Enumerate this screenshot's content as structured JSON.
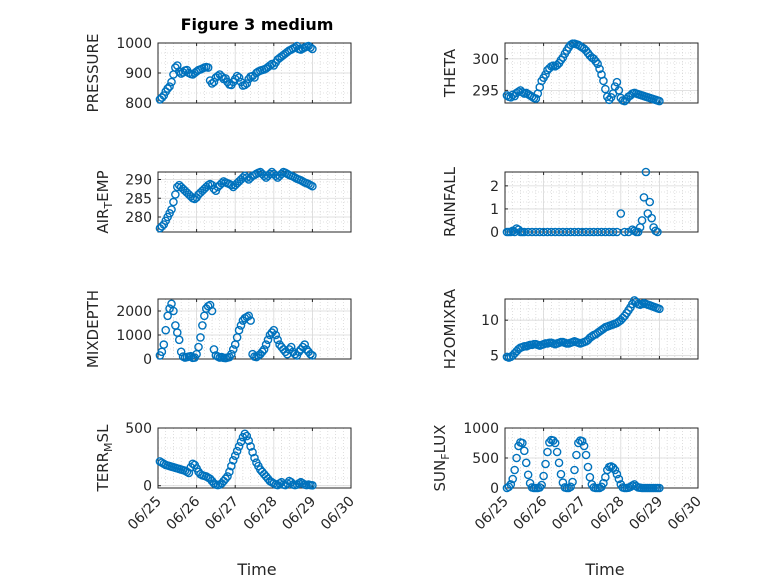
{
  "figure": {
    "title": "Figure 3 medium",
    "x_axis_label": "Time",
    "x_tick_labels": [
      "06/25",
      "06/26",
      "06/27",
      "06/28",
      "06/29",
      "06/30"
    ],
    "marker_color": "#0072BD"
  },
  "chart_data": [
    {
      "type": "scatter",
      "ylabel": "PRESSURE",
      "ylim": [
        800,
        1000
      ],
      "yticks": [
        800,
        900,
        1000
      ],
      "xlim": [
        0,
        5
      ],
      "grid": "minor",
      "x": [
        0.05,
        0.1,
        0.15,
        0.2,
        0.25,
        0.3,
        0.35,
        0.4,
        0.45,
        0.5,
        0.55,
        0.6,
        0.65,
        0.7,
        0.75,
        0.8,
        0.85,
        0.9,
        0.95,
        1.0,
        1.05,
        1.1,
        1.15,
        1.2,
        1.25,
        1.3,
        1.35,
        1.4,
        1.45,
        1.5,
        1.55,
        1.6,
        1.65,
        1.7,
        1.75,
        1.8,
        1.85,
        1.9,
        1.95,
        2.0,
        2.05,
        2.1,
        2.15,
        2.2,
        2.25,
        2.3,
        2.35,
        2.4,
        2.45,
        2.5,
        2.55,
        2.6,
        2.65,
        2.7,
        2.75,
        2.8,
        2.85,
        2.9,
        2.95,
        3.0,
        3.05,
        3.1,
        3.15,
        3.2,
        3.25,
        3.3,
        3.35,
        3.4,
        3.45,
        3.5,
        3.55,
        3.6,
        3.65,
        3.7,
        3.75,
        3.8,
        3.85,
        3.9,
        3.95,
        4.0
      ],
      "y": [
        812,
        818,
        825,
        838,
        848,
        855,
        870,
        895,
        918,
        925,
        905,
        898,
        902,
        908,
        910,
        900,
        897,
        895,
        900,
        905,
        910,
        912,
        915,
        918,
        920,
        918,
        875,
        865,
        870,
        885,
        890,
        895,
        888,
        880,
        882,
        870,
        862,
        860,
        870,
        880,
        890,
        885,
        870,
        858,
        860,
        865,
        880,
        888,
        890,
        885,
        900,
        905,
        908,
        910,
        912,
        915,
        920,
        925,
        930,
        925,
        935,
        945,
        950,
        955,
        960,
        965,
        970,
        975,
        978,
        982,
        985,
        990,
        980,
        978,
        982,
        985,
        988,
        990,
        985,
        980
      ],
      "values": []
    },
    {
      "type": "scatter",
      "ylabel": "THETA",
      "ylim": [
        293,
        302.5
      ],
      "yticks": [
        295,
        300
      ],
      "xlim": [
        0,
        5
      ],
      "grid": "minor",
      "x": [
        0.05,
        0.1,
        0.15,
        0.2,
        0.25,
        0.3,
        0.35,
        0.4,
        0.45,
        0.5,
        0.55,
        0.6,
        0.65,
        0.7,
        0.75,
        0.8,
        0.85,
        0.9,
        0.95,
        1.0,
        1.05,
        1.1,
        1.15,
        1.2,
        1.25,
        1.3,
        1.35,
        1.4,
        1.45,
        1.5,
        1.55,
        1.6,
        1.65,
        1.7,
        1.75,
        1.8,
        1.85,
        1.9,
        1.95,
        2.0,
        2.05,
        2.1,
        2.15,
        2.2,
        2.25,
        2.3,
        2.35,
        2.4,
        2.45,
        2.5,
        2.55,
        2.6,
        2.65,
        2.7,
        2.75,
        2.8,
        2.85,
        2.9,
        2.95,
        3.0,
        3.05,
        3.1,
        3.15,
        3.2,
        3.25,
        3.3,
        3.35,
        3.4,
        3.45,
        3.5,
        3.55,
        3.6,
        3.65,
        3.7,
        3.75,
        3.8,
        3.85,
        3.9,
        3.95,
        4.0
      ],
      "y": [
        294.2,
        294.0,
        293.9,
        294.3,
        294.1,
        294.6,
        294.8,
        295.0,
        294.7,
        294.5,
        294.6,
        294.4,
        294.2,
        294.0,
        293.8,
        293.7,
        294.5,
        295.5,
        296.5,
        297.0,
        297.5,
        298.2,
        298.5,
        298.8,
        298.9,
        298.8,
        299.0,
        299.3,
        299.8,
        300.2,
        300.8,
        301.3,
        301.8,
        302.2,
        302.4,
        302.4,
        302.3,
        302.2,
        302.0,
        301.8,
        301.6,
        301.3,
        300.9,
        300.5,
        300.2,
        300.0,
        299.6,
        299.2,
        298.4,
        297.5,
        296.5,
        295.2,
        294.0,
        293.5,
        293.9,
        294.5,
        295.6,
        296.3,
        295.0,
        293.8,
        293.4,
        293.3,
        293.6,
        294.0,
        294.2,
        294.5,
        294.6,
        294.5,
        294.4,
        294.3,
        294.2,
        294.1,
        294.0,
        293.9,
        293.8,
        293.7,
        293.6,
        293.5,
        293.4,
        293.3
      ],
      "values": []
    },
    {
      "type": "scatter",
      "ylabel": "AIR_TEMP",
      "ylabel_parts": {
        "base": "AIR",
        "sub": "T",
        "rest": "EMP"
      },
      "ylim": [
        276,
        292
      ],
      "yticks": [
        280,
        285,
        290
      ],
      "xlim": [
        0,
        5
      ],
      "grid": "minor",
      "x": [
        0.05,
        0.1,
        0.15,
        0.2,
        0.25,
        0.3,
        0.35,
        0.4,
        0.45,
        0.5,
        0.55,
        0.6,
        0.65,
        0.7,
        0.75,
        0.8,
        0.85,
        0.9,
        0.95,
        1.0,
        1.05,
        1.1,
        1.15,
        1.2,
        1.25,
        1.3,
        1.35,
        1.4,
        1.45,
        1.5,
        1.55,
        1.6,
        1.65,
        1.7,
        1.75,
        1.8,
        1.85,
        1.9,
        1.95,
        2.0,
        2.05,
        2.1,
        2.15,
        2.2,
        2.25,
        2.3,
        2.35,
        2.4,
        2.45,
        2.5,
        2.55,
        2.6,
        2.65,
        2.7,
        2.75,
        2.8,
        2.85,
        2.9,
        2.95,
        3.0,
        3.05,
        3.1,
        3.15,
        3.2,
        3.25,
        3.3,
        3.35,
        3.4,
        3.45,
        3.5,
        3.55,
        3.6,
        3.65,
        3.7,
        3.75,
        3.8,
        3.85,
        3.9,
        3.95,
        4.0
      ],
      "y": [
        277,
        277.5,
        278,
        279,
        280,
        281,
        282,
        284,
        286,
        288,
        288.5,
        288,
        287.5,
        287,
        286.5,
        286,
        285.5,
        285,
        284.8,
        285.2,
        286,
        286.5,
        287,
        287.5,
        288,
        288.5,
        288.8,
        288.5,
        287.5,
        287,
        288,
        288.5,
        289,
        289.5,
        289.2,
        289,
        288.8,
        288.5,
        288,
        288.5,
        289,
        289.5,
        290,
        290.5,
        291,
        290.5,
        290,
        290.5,
        291,
        291.2,
        291.5,
        291.8,
        292,
        291.5,
        291,
        290.5,
        291,
        291.5,
        292,
        291.5,
        291,
        290.5,
        291,
        291.5,
        292,
        291.8,
        291.5,
        291.2,
        291,
        290.8,
        290.5,
        290.2,
        290,
        289.8,
        289.5,
        289.2,
        289,
        288.8,
        288.5,
        288.2
      ],
      "values": []
    },
    {
      "type": "scatter",
      "ylabel": "RAINFALL",
      "ylim": [
        0,
        2.6
      ],
      "yticks": [
        0,
        1,
        2
      ],
      "xlim": [
        0,
        5
      ],
      "grid": "minor",
      "x": [
        0.05,
        0.1,
        0.15,
        0.2,
        0.25,
        0.3,
        0.35,
        0.4,
        0.45,
        0.5,
        0.6,
        0.7,
        0.8,
        0.9,
        1.0,
        1.1,
        1.2,
        1.3,
        1.4,
        1.5,
        1.6,
        1.7,
        1.8,
        1.9,
        2.0,
        2.1,
        2.2,
        2.3,
        2.4,
        2.5,
        2.6,
        2.7,
        2.8,
        2.9,
        3.0,
        3.1,
        3.2,
        3.3,
        3.35,
        3.4,
        3.45,
        3.5,
        3.55,
        3.6,
        3.65,
        3.7,
        3.75,
        3.8,
        3.85,
        3.9,
        3.95
      ],
      "y": [
        0,
        0,
        0,
        0.05,
        0,
        0.15,
        0.1,
        0,
        0,
        0,
        0,
        0,
        0,
        0,
        0,
        0,
        0,
        0,
        0,
        0,
        0,
        0,
        0,
        0,
        0,
        0,
        0,
        0,
        0,
        0,
        0,
        0,
        0,
        0,
        0.8,
        0,
        0,
        0.1,
        0.05,
        0,
        0,
        0.2,
        0.5,
        1.5,
        2.6,
        0.8,
        1.3,
        0.6,
        0.2,
        0.05,
        0
      ],
      "values": []
    },
    {
      "type": "scatter",
      "ylabel": "MIXDEPTH",
      "ylim": [
        0,
        2500
      ],
      "yticks": [
        0,
        1000,
        2000
      ],
      "xlim": [
        0,
        5
      ],
      "grid": "minor",
      "x": [
        0.05,
        0.1,
        0.15,
        0.2,
        0.25,
        0.3,
        0.35,
        0.4,
        0.45,
        0.5,
        0.55,
        0.6,
        0.65,
        0.7,
        0.75,
        0.8,
        0.85,
        0.9,
        0.95,
        1.0,
        1.05,
        1.1,
        1.15,
        1.2,
        1.25,
        1.3,
        1.35,
        1.4,
        1.45,
        1.5,
        1.55,
        1.6,
        1.65,
        1.7,
        1.75,
        1.8,
        1.85,
        1.9,
        1.95,
        2.0,
        2.05,
        2.1,
        2.15,
        2.2,
        2.25,
        2.3,
        2.35,
        2.4,
        2.45,
        2.5,
        2.55,
        2.6,
        2.65,
        2.7,
        2.75,
        2.8,
        2.85,
        2.9,
        2.95,
        3.0,
        3.05,
        3.1,
        3.15,
        3.2,
        3.25,
        3.3,
        3.35,
        3.4,
        3.45,
        3.5,
        3.55,
        3.6,
        3.65,
        3.7,
        3.75,
        3.8,
        3.85,
        3.9,
        3.95,
        4.0
      ],
      "y": [
        150,
        300,
        600,
        1200,
        1800,
        2100,
        2300,
        2000,
        1400,
        1100,
        800,
        300,
        100,
        60,
        80,
        100,
        120,
        50,
        60,
        200,
        500,
        900,
        1400,
        1800,
        2100,
        2200,
        2250,
        2000,
        400,
        150,
        100,
        60,
        80,
        50,
        40,
        60,
        80,
        200,
        400,
        600,
        900,
        1200,
        1400,
        1600,
        1700,
        1750,
        1800,
        1600,
        200,
        100,
        80,
        150,
        200,
        300,
        400,
        600,
        800,
        1000,
        1100,
        1200,
        1000,
        800,
        600,
        500,
        400,
        300,
        200,
        400,
        500,
        300,
        200,
        150,
        300,
        400,
        500,
        600,
        400,
        300,
        200,
        150
      ],
      "values": []
    },
    {
      "type": "scatter",
      "ylabel": "H2OMIXRA",
      "ylim": [
        4.5,
        13
      ],
      "yticks": [
        5,
        10
      ],
      "xlim": [
        0,
        5
      ],
      "grid": "minor",
      "x": [
        0.05,
        0.1,
        0.15,
        0.2,
        0.25,
        0.3,
        0.35,
        0.4,
        0.45,
        0.5,
        0.55,
        0.6,
        0.65,
        0.7,
        0.75,
        0.8,
        0.85,
        0.9,
        0.95,
        1.0,
        1.05,
        1.1,
        1.15,
        1.2,
        1.25,
        1.3,
        1.35,
        1.4,
        1.45,
        1.5,
        1.55,
        1.6,
        1.65,
        1.7,
        1.75,
        1.8,
        1.85,
        1.9,
        1.95,
        2.0,
        2.05,
        2.1,
        2.15,
        2.2,
        2.25,
        2.3,
        2.35,
        2.4,
        2.45,
        2.5,
        2.55,
        2.6,
        2.65,
        2.7,
        2.75,
        2.8,
        2.85,
        2.9,
        2.95,
        3.0,
        3.05,
        3.1,
        3.15,
        3.2,
        3.25,
        3.3,
        3.35,
        3.4,
        3.45,
        3.5,
        3.55,
        3.6,
        3.65,
        3.7,
        3.75,
        3.8,
        3.85,
        3.9,
        3.95,
        4.0
      ],
      "y": [
        4.8,
        4.7,
        4.8,
        5.0,
        5.3,
        5.6,
        5.9,
        6.1,
        6.2,
        6.3,
        6.3,
        6.4,
        6.5,
        6.5,
        6.6,
        6.6,
        6.5,
        6.4,
        6.5,
        6.6,
        6.7,
        6.7,
        6.8,
        6.8,
        6.7,
        6.6,
        6.7,
        6.8,
        6.9,
        6.9,
        6.8,
        6.7,
        6.7,
        6.8,
        6.9,
        7.0,
        6.9,
        6.8,
        6.7,
        6.8,
        6.9,
        7.0,
        7.2,
        7.5,
        7.7,
        7.9,
        8.0,
        8.2,
        8.4,
        8.6,
        8.8,
        9.0,
        9.1,
        9.2,
        9.3,
        9.4,
        9.5,
        9.6,
        9.8,
        10.0,
        10.3,
        10.6,
        11.0,
        11.4,
        11.8,
        12.3,
        12.8,
        12.6,
        12.3,
        12.2,
        12.3,
        12.4,
        12.3,
        12.2,
        12.1,
        12.0,
        11.9,
        11.8,
        11.7,
        11.6
      ],
      "values": []
    },
    {
      "type": "scatter",
      "ylabel": "TERR_MSL",
      "ylabel_parts": {
        "base": "TERR",
        "sub": "M",
        "rest": "SL"
      },
      "ylim": [
        -20,
        500
      ],
      "yticks": [
        0,
        500
      ],
      "xlim": [
        0,
        5
      ],
      "grid": "minor",
      "x": [
        0.05,
        0.1,
        0.15,
        0.2,
        0.25,
        0.3,
        0.35,
        0.4,
        0.45,
        0.5,
        0.55,
        0.6,
        0.65,
        0.7,
        0.75,
        0.8,
        0.85,
        0.9,
        0.95,
        1.0,
        1.05,
        1.1,
        1.15,
        1.2,
        1.25,
        1.3,
        1.35,
        1.4,
        1.45,
        1.5,
        1.55,
        1.6,
        1.65,
        1.7,
        1.75,
        1.8,
        1.85,
        1.9,
        1.95,
        2.0,
        2.05,
        2.1,
        2.15,
        2.2,
        2.25,
        2.3,
        2.35,
        2.4,
        2.45,
        2.5,
        2.55,
        2.6,
        2.65,
        2.7,
        2.75,
        2.8,
        2.85,
        2.9,
        2.95,
        3.0,
        3.05,
        3.1,
        3.15,
        3.2,
        3.25,
        3.3,
        3.35,
        3.4,
        3.45,
        3.5,
        3.55,
        3.6,
        3.65,
        3.7,
        3.75,
        3.8,
        3.85,
        3.9,
        3.95,
        4.0
      ],
      "y": [
        210,
        200,
        190,
        180,
        175,
        170,
        165,
        160,
        155,
        150,
        145,
        140,
        135,
        130,
        120,
        110,
        160,
        190,
        180,
        150,
        120,
        100,
        90,
        85,
        80,
        70,
        60,
        40,
        20,
        10,
        5,
        10,
        20,
        40,
        60,
        80,
        120,
        170,
        220,
        260,
        300,
        340,
        380,
        420,
        450,
        430,
        390,
        340,
        290,
        240,
        200,
        170,
        140,
        120,
        100,
        80,
        60,
        40,
        30,
        20,
        10,
        5,
        20,
        30,
        10,
        5,
        20,
        40,
        30,
        10,
        5,
        10,
        20,
        30,
        20,
        10,
        5,
        10,
        5,
        3
      ],
      "values": []
    },
    {
      "type": "scatter",
      "ylabel": "SUN_FLUX",
      "ylabel_parts": {
        "base": "SUN",
        "sub": "F",
        "rest": "LUX"
      },
      "ylim": [
        0,
        1000
      ],
      "yticks": [
        0,
        500,
        1000
      ],
      "xlim": [
        0,
        5
      ],
      "grid": "minor",
      "x": [
        0.05,
        0.1,
        0.15,
        0.2,
        0.25,
        0.3,
        0.35,
        0.4,
        0.45,
        0.5,
        0.55,
        0.6,
        0.65,
        0.7,
        0.75,
        0.8,
        0.85,
        0.9,
        0.95,
        1.0,
        1.05,
        1.1,
        1.15,
        1.2,
        1.25,
        1.3,
        1.35,
        1.4,
        1.45,
        1.5,
        1.55,
        1.6,
        1.65,
        1.7,
        1.75,
        1.8,
        1.85,
        1.9,
        1.95,
        2.0,
        2.05,
        2.1,
        2.15,
        2.2,
        2.25,
        2.3,
        2.35,
        2.4,
        2.45,
        2.5,
        2.55,
        2.6,
        2.65,
        2.7,
        2.75,
        2.8,
        2.85,
        2.9,
        2.95,
        3.0,
        3.05,
        3.1,
        3.15,
        3.2,
        3.25,
        3.3,
        3.35,
        3.4,
        3.45,
        3.5,
        3.55,
        3.6,
        3.65,
        3.7,
        3.75,
        3.8,
        3.85,
        3.9,
        3.95,
        4.0
      ],
      "y": [
        0,
        20,
        60,
        150,
        300,
        500,
        700,
        760,
        750,
        620,
        420,
        220,
        80,
        10,
        0,
        0,
        0,
        10,
        50,
        200,
        400,
        600,
        760,
        800,
        790,
        750,
        600,
        420,
        230,
        90,
        10,
        0,
        0,
        20,
        100,
        300,
        550,
        750,
        790,
        780,
        700,
        550,
        350,
        180,
        60,
        10,
        0,
        0,
        0,
        20,
        80,
        180,
        300,
        350,
        360,
        340,
        300,
        230,
        150,
        60,
        10,
        0,
        0,
        5,
        20,
        40,
        60,
        30,
        10,
        5,
        0,
        0,
        0,
        0,
        0,
        0,
        0,
        0,
        0,
        0
      ],
      "values": []
    }
  ]
}
